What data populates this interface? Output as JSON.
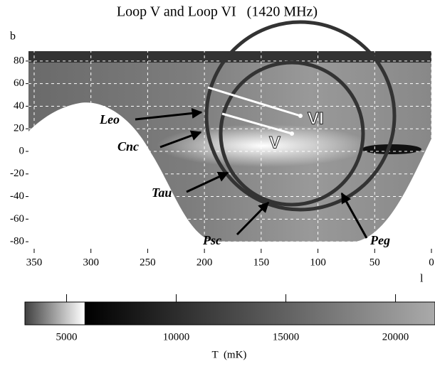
{
  "chart_data": {
    "type": "heatmap",
    "title": "Loop V and Loop VI   (1420 MHz)",
    "x_label": "l",
    "y_label": "b",
    "xlim": [
      355,
      0
    ],
    "ylim": [
      -90,
      90
    ],
    "xticks": [
      350,
      300,
      250,
      200,
      150,
      100,
      50,
      0
    ],
    "yticks": [
      80,
      60,
      40,
      20,
      0,
      -20,
      -40,
      -60,
      -80
    ],
    "grid": true,
    "annotations": [
      "Leo",
      "Cnc",
      "Tau",
      "Psc",
      "Peg",
      "V",
      "VI"
    ],
    "colorbar": {
      "label": "T  (mK)",
      "lim": [
        3100,
        21800
      ],
      "ticks": [
        5000,
        10000,
        15000,
        20000
      ]
    }
  }
}
